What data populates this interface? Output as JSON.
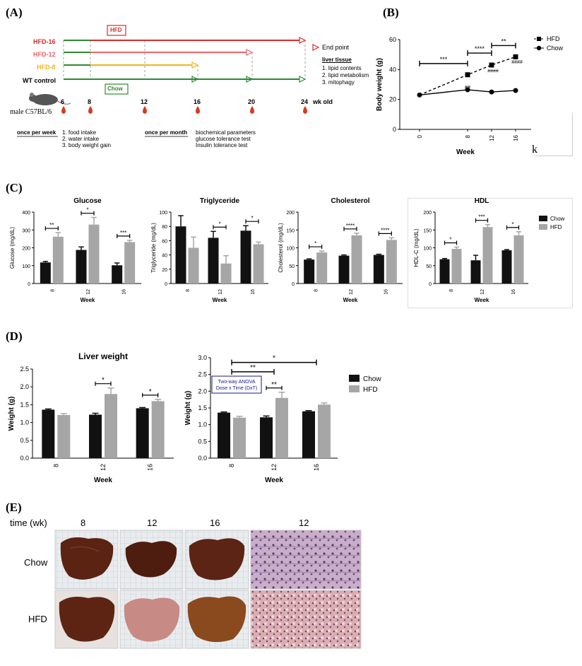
{
  "panels": {
    "a": "(A)",
    "b": "(B)",
    "c": "(C)",
    "d": "(D)",
    "e": "(E)"
  },
  "timeline": {
    "groups": [
      {
        "label": "HFD-16",
        "color": "#d62b2b"
      },
      {
        "label": "HFD-12",
        "color": "#f0626a"
      },
      {
        "label": "HFD-8",
        "color": "#f5b51c"
      },
      {
        "label": "WT control",
        "color": "#000000"
      }
    ],
    "hfd_box": "HFD",
    "chow_box": "Chow",
    "ticks": [
      "6",
      "8",
      "12",
      "16",
      "20",
      "24"
    ],
    "wk_old": "wk old",
    "mouse_label": "male C57BL/6",
    "endpoint": "End point",
    "liver_title": "liver tissue",
    "liver_items": [
      "1.   lipid contents",
      "2.   lipid metabolism",
      "3.   mitophagy"
    ],
    "weekly_label": "once per week",
    "weekly_items": [
      "1.   food intake",
      "2.   water intake",
      "3.   body weight gain"
    ],
    "monthly_label": "once per month",
    "monthly_items": [
      "biochemical parameters",
      "glucose tolerance test",
      "Insulin tolerance test"
    ]
  },
  "k_mark": "k",
  "chart_data": [
    {
      "id": "bodyweight",
      "type": "line",
      "title": "",
      "xlabel": "Week",
      "ylabel": "Body weight (g)",
      "x": [
        "0",
        "8",
        "12",
        "16"
      ],
      "ylim": [
        0,
        60
      ],
      "yticks": [
        0,
        20,
        40,
        60
      ],
      "series": [
        {
          "name": "HFD",
          "values": [
            23,
            36.5,
            43,
            48.5
          ]
        },
        {
          "name": "Chow",
          "values": [
            23,
            26.5,
            25,
            26
          ]
        }
      ],
      "brackets": [
        "***",
        "****",
        "**"
      ],
      "hash_labels": [
        "##",
        "####",
        "####"
      ],
      "legend": "top-right"
    },
    {
      "id": "glucose",
      "type": "bar",
      "title": "Glucose",
      "ylabel": "Glucose (mg/dL)",
      "xlabel": "Week",
      "categories": [
        "8",
        "12",
        "16"
      ],
      "ylim": [
        0,
        400
      ],
      "yticks": [
        0,
        100,
        200,
        300,
        400
      ],
      "series": [
        {
          "name": "Chow",
          "values": [
            118,
            188,
            102
          ],
          "err": [
            6,
            17,
            13
          ]
        },
        {
          "name": "HFD",
          "values": [
            262,
            330,
            232
          ],
          "err": [
            23,
            40,
            10
          ]
        }
      ],
      "sig": [
        "**",
        "*",
        "***"
      ]
    },
    {
      "id": "triglyceride",
      "type": "bar",
      "title": "Triglyceride",
      "ylabel": "Triglyceride (mg/dL)",
      "xlabel": "Week",
      "categories": [
        "8",
        "12",
        "16"
      ],
      "ylim": [
        0,
        100
      ],
      "yticks": [
        0,
        20,
        40,
        60,
        80,
        100
      ],
      "series": [
        {
          "name": "Chow",
          "values": [
            80,
            64,
            74
          ],
          "err": [
            15,
            9,
            7
          ]
        },
        {
          "name": "HFD",
          "values": [
            50,
            28,
            55
          ],
          "err": [
            15,
            11,
            3
          ]
        }
      ],
      "sig": [
        "",
        "*",
        "*"
      ]
    },
    {
      "id": "cholesterol",
      "type": "bar",
      "title": "Cholesterol",
      "ylabel": "Cholesterol (mg/dL)",
      "xlabel": "Week",
      "categories": [
        "8",
        "12",
        "16"
      ],
      "ylim": [
        0,
        200
      ],
      "yticks": [
        0,
        50,
        100,
        150,
        200
      ],
      "series": [
        {
          "name": "Chow",
          "values": [
            67,
            78,
            80
          ],
          "err": [
            2,
            2,
            2
          ]
        },
        {
          "name": "HFD",
          "values": [
            87,
            135,
            122
          ],
          "err": [
            4,
            6,
            6
          ]
        }
      ],
      "sig": [
        "*",
        "****",
        "****"
      ]
    },
    {
      "id": "hdl",
      "type": "bar",
      "title": "HDL",
      "ylabel": "HDL-C (mg/dL)",
      "xlabel": "Week",
      "categories": [
        "8",
        "12",
        "16"
      ],
      "ylim": [
        0,
        200
      ],
      "yticks": [
        0,
        50,
        100,
        150,
        200
      ],
      "series": [
        {
          "name": "Chow",
          "values": [
            68,
            65,
            93
          ],
          "err": [
            2,
            14,
            2
          ]
        },
        {
          "name": "HFD",
          "values": [
            97,
            158,
            135
          ],
          "err": [
            5,
            7,
            10
          ]
        }
      ],
      "sig": [
        "*",
        "***",
        "*"
      ],
      "legend": [
        "Chow",
        "HFD"
      ]
    },
    {
      "id": "liver1",
      "type": "bar",
      "title": "Liver weight",
      "ylabel": "Weight (g)",
      "xlabel": "Week",
      "categories": [
        "8",
        "12",
        "16"
      ],
      "ylim": [
        0,
        2.5
      ],
      "yticks": [
        0.0,
        0.5,
        1.0,
        1.5,
        2.0,
        2.5
      ],
      "series": [
        {
          "name": "Chow",
          "values": [
            1.36,
            1.22,
            1.4
          ],
          "err": [
            0.02,
            0.04,
            0.02
          ]
        },
        {
          "name": "HFD",
          "values": [
            1.21,
            1.8,
            1.6
          ],
          "err": [
            0.04,
            0.17,
            0.05
          ]
        }
      ],
      "sig": [
        "",
        "*",
        "*"
      ]
    },
    {
      "id": "liver2",
      "type": "bar",
      "title": "",
      "ylabel": "Weight (g)",
      "xlabel": "Week",
      "categories": [
        "8",
        "12",
        "16"
      ],
      "ylim": [
        0,
        3.0
      ],
      "yticks": [
        0.0,
        0.5,
        1.0,
        1.5,
        2.0,
        2.5,
        3.0
      ],
      "series": [
        {
          "name": "Chow",
          "values": [
            1.36,
            1.22,
            1.4
          ],
          "err": [
            0.02,
            0.04,
            0.02
          ]
        },
        {
          "name": "HFD",
          "values": [
            1.21,
            1.8,
            1.6
          ],
          "err": [
            0.04,
            0.17,
            0.05
          ]
        }
      ],
      "sig": [
        "",
        "**",
        ""
      ],
      "top_brackets": [
        "**",
        "*"
      ],
      "anova_text": [
        "Two-way ANOVA",
        "Dose x Time (DxT)"
      ],
      "legend": [
        "Chow",
        "HFD"
      ]
    }
  ],
  "colors": {
    "chow": "#111111",
    "hfd": "#a6a6a6"
  },
  "liver_images": {
    "time_label": "time (wk)",
    "weeks": [
      "8",
      "12",
      "16",
      "12"
    ],
    "rows": [
      "Chow",
      "HFD"
    ]
  }
}
